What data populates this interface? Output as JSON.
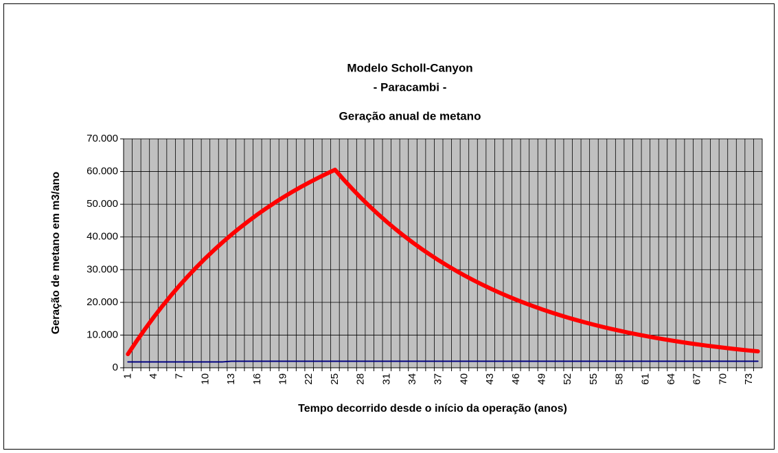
{
  "chart_data": {
    "type": "line",
    "title": [
      "Modelo Scholl-Canyon",
      "- Paracambi -",
      "Geração anual de metano"
    ],
    "x_label": "Tempo decorrido desde o início da operação (anos)",
    "y_label": "Geração de metano em m3/ano",
    "categories": [
      "1",
      null,
      null,
      "4",
      null,
      null,
      "7",
      null,
      null,
      "10",
      null,
      null,
      "13",
      null,
      null,
      "16",
      null,
      null,
      "19",
      null,
      null,
      "22",
      null,
      null,
      "25",
      null,
      null,
      "28",
      null,
      null,
      "31",
      null,
      null,
      "34",
      null,
      null,
      "37",
      null,
      null,
      "40",
      null,
      null,
      "43",
      null,
      null,
      "46",
      null,
      null,
      "49",
      null,
      null,
      "52",
      null,
      null,
      "55",
      null,
      null,
      "58",
      null,
      null,
      "61",
      null,
      null,
      "64",
      null,
      null,
      "67",
      null,
      null,
      "70",
      null,
      null,
      "73",
      null
    ],
    "series": [
      {
        "color": "#ff0000",
        "values": [
          4175,
          8135,
          11905,
          15490,
          18900,
          22130,
          25210,
          28130,
          30900,
          33550,
          36050,
          38440,
          40710,
          42860,
          44910,
          46860,
          48700,
          50460,
          52130,
          53720,
          55230,
          56660,
          58020,
          59320,
          60550,
          57550,
          54690,
          51980,
          49400,
          46950,
          44620,
          42410,
          40300,
          38300,
          36400,
          34600,
          32880,
          31250,
          29700,
          28230,
          26830,
          25500,
          24230,
          23030,
          21890,
          20800,
          19770,
          18790,
          17860,
          16970,
          16130,
          15330,
          14570,
          13850,
          13160,
          12510,
          11890,
          11300,
          10740,
          10200,
          9700,
          9220,
          8760,
          8330,
          7910,
          7520,
          7150,
          6790,
          6460,
          6140,
          5830,
          5540,
          5270,
          5010
        ]
      },
      {
        "color": "#000080",
        "values": [
          1800,
          1800,
          1800,
          1800,
          1800,
          1800,
          1800,
          1800,
          1800,
          1800,
          1800,
          1800,
          2000,
          2000,
          2000,
          2000,
          2000,
          2000,
          2000,
          2000,
          2000,
          2000,
          2000,
          2000,
          2000,
          2000,
          2000,
          2000,
          2000,
          2000,
          2000,
          2000,
          2000,
          2000,
          2000,
          2000,
          2000,
          2000,
          2000,
          2000,
          2000,
          2000,
          2000,
          2000,
          2000,
          2000,
          2000,
          2000,
          2000,
          2000,
          2000,
          2000,
          2000,
          2000,
          2000,
          2000,
          2000,
          2000,
          2000,
          2000,
          2000,
          2000,
          2000,
          2000,
          2000,
          2000,
          2000,
          2000,
          2000,
          2000,
          2000,
          2000,
          2000,
          2000
        ]
      }
    ],
    "ylim": [
      0,
      70000
    ],
    "yticks": [
      0,
      {
        "value": 10000,
        "label": "10.000"
      },
      {
        "value": 20000,
        "label": "20.000"
      },
      {
        "value": 30000,
        "label": "30.000"
      },
      {
        "value": 40000,
        "label": "40.000"
      },
      {
        "value": 50000,
        "label": "50.000"
      },
      {
        "value": 60000,
        "label": "60.000"
      },
      {
        "value": 70000,
        "label": "70.000"
      }
    ],
    "grid": true,
    "plot_background": "#c0c0c0"
  }
}
